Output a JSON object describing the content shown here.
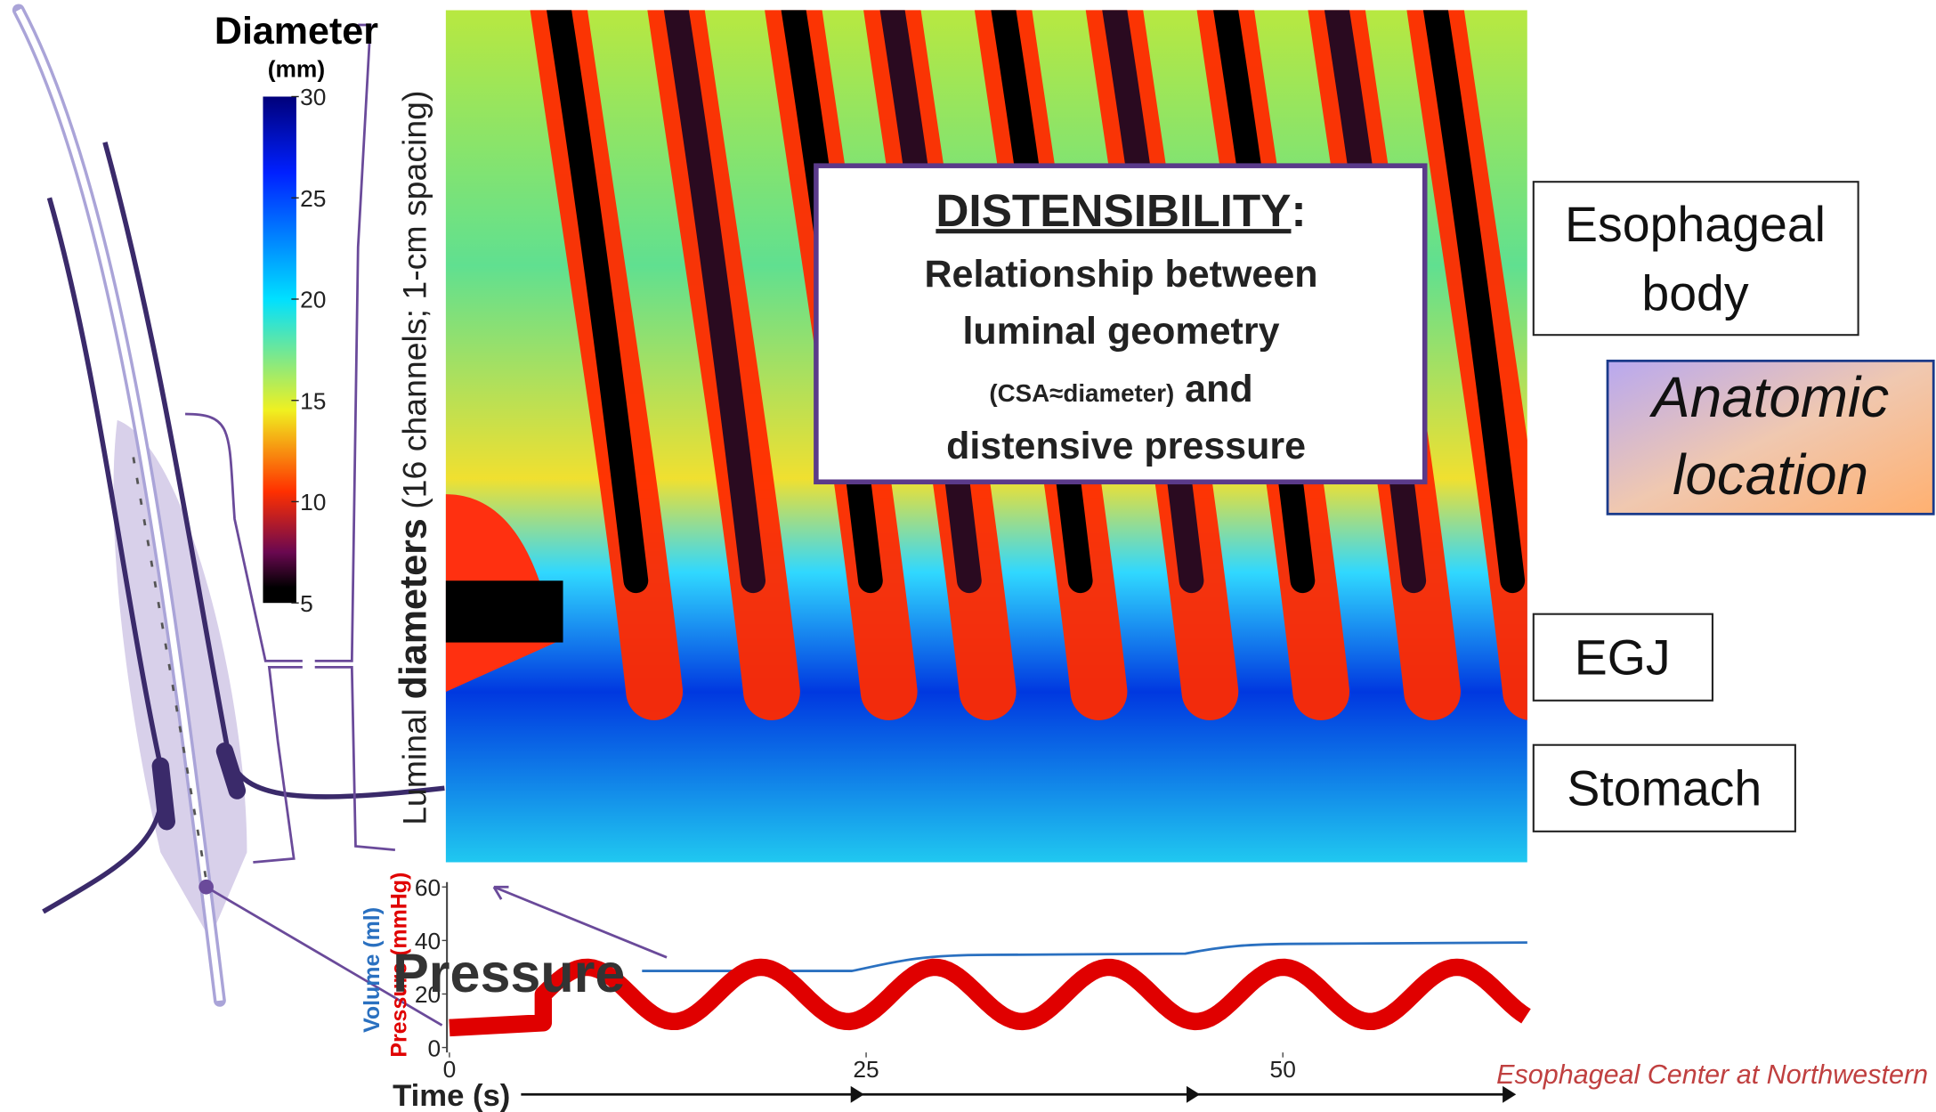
{
  "colorbar": {
    "title": "Diameter",
    "unit": "(mm)",
    "ticks": [
      30,
      25,
      20,
      15,
      10,
      5
    ]
  },
  "heatmap": {
    "ylabel": {
      "prefix": "Luminal ",
      "bold": "diameters",
      "suffix": " (16 channels; 1-cm spacing)"
    }
  },
  "callout": {
    "title": "DISTENSIBILITY",
    "colon": ":",
    "lines": [
      "Relationship between",
      "luminal geometry"
    ],
    "small": "(CSA≈diameter)",
    "small_after": " and",
    "last": "distensive pressure"
  },
  "regions": [
    {
      "lines": [
        "Esophageal",
        "body"
      ]
    },
    {
      "lines": [
        "EGJ"
      ]
    },
    {
      "lines": [
        "Stomach"
      ]
    }
  ],
  "legend_box": {
    "lines": [
      "Anatomic",
      "location"
    ]
  },
  "trace": {
    "volume_label": "Volume (ml)",
    "pressure_label": "Pressure (mmHg)",
    "yticks": [
      60,
      40,
      20,
      0
    ],
    "xticks": [
      0,
      25,
      50
    ],
    "xlabel": "Time (s)",
    "overlay": "Pressure"
  },
  "credit": "Esophageal Center at Northwestern"
}
